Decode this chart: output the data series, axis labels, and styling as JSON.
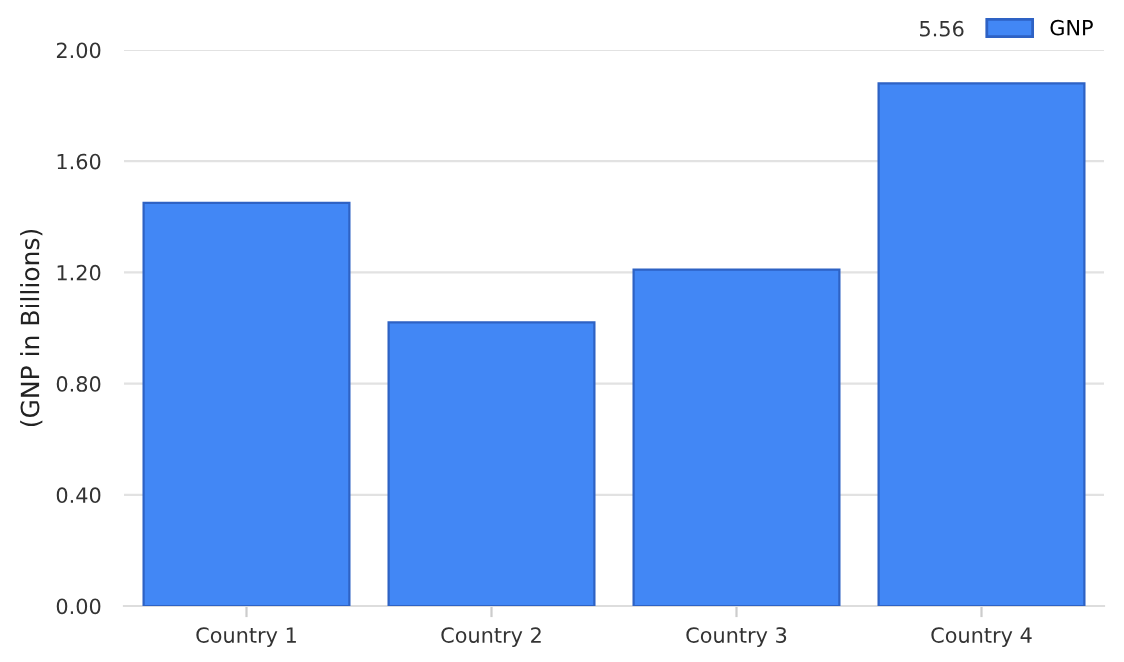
{
  "chart_data": {
    "type": "bar",
    "ylabel": "(GNP in Billions)",
    "categories": [
      "Country 1",
      "Country 2",
      "Country 3",
      "Country 4"
    ],
    "series": [
      {
        "name": "GNP",
        "color": "#4287f5",
        "values": [
          1.45,
          1.02,
          1.21,
          1.88
        ]
      }
    ],
    "ylim": [
      0,
      2
    ],
    "yticks": [
      {
        "value": 0,
        "label": "0.00"
      },
      {
        "value": 0.4,
        "label": "0.40"
      },
      {
        "value": 0.8,
        "label": "0.80"
      },
      {
        "value": 1.2,
        "label": "1.20"
      },
      {
        "value": 1.6,
        "label": "1.60"
      },
      {
        "value": 2,
        "label": "2.00"
      }
    ],
    "grid": "y",
    "legend": "top right",
    "annotations": [
      "5.56"
    ]
  }
}
